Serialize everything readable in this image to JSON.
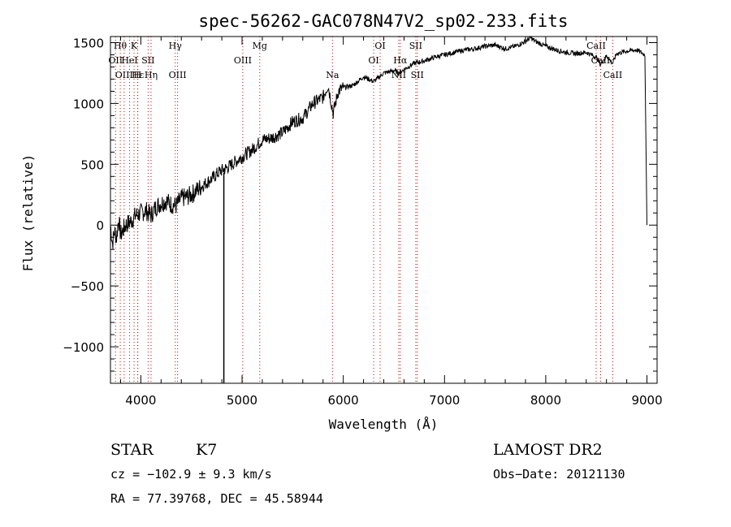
{
  "chart_data": {
    "type": "line",
    "title": "spec-56262-GAC078N47V2_sp02-233.fits",
    "xlabel": "Wavelength (Å)",
    "ylabel": "Flux (relative)",
    "xlim": [
      3700,
      9100
    ],
    "ylim": [
      -1300,
      1550
    ],
    "xticks": [
      4000,
      5000,
      6000,
      7000,
      8000,
      9000
    ],
    "yticks": [
      -1000,
      -500,
      0,
      500,
      1000,
      1500
    ],
    "tick_labels_x": [
      "4000",
      "5000",
      "6000",
      "7000",
      "8000",
      "9000"
    ],
    "tick_labels_y": [
      "−1000",
      "−500",
      "0",
      "500",
      "1000",
      "1500"
    ],
    "series": [
      {
        "x": [
          3700,
          3720,
          3740,
          3760,
          3780,
          3800,
          3850,
          3900,
          3950,
          4000,
          4050,
          4100,
          4150,
          4200,
          4250,
          4300,
          4350,
          4400,
          4450,
          4500,
          4600,
          4700,
          4750,
          4800,
          4850,
          4900,
          5000,
          5100,
          5200,
          5300,
          5400,
          5500,
          5600,
          5700,
          5800,
          5850,
          5900,
          5950,
          6000,
          6100,
          6200,
          6300,
          6400,
          6500,
          6550,
          6600,
          6700,
          6800,
          6900,
          7000,
          7100,
          7200,
          7300,
          7400,
          7500,
          7600,
          7700,
          7800,
          7850,
          7900,
          8000,
          8100,
          8200,
          8300,
          8400,
          8500,
          8540,
          8600,
          8660,
          8700,
          8800,
          8900,
          8980,
          9000
        ],
        "y": [
          0,
          -150,
          -50,
          -100,
          50,
          -80,
          0,
          30,
          80,
          100,
          120,
          80,
          150,
          180,
          200,
          170,
          160,
          220,
          230,
          250,
          320,
          380,
          420,
          450,
          470,
          500,
          560,
          620,
          700,
          720,
          760,
          850,
          880,
          1000,
          1050,
          1150,
          920,
          1100,
          1130,
          1150,
          1220,
          1180,
          1250,
          1270,
          1250,
          1280,
          1330,
          1350,
          1380,
          1400,
          1420,
          1440,
          1450,
          1470,
          1480,
          1450,
          1470,
          1510,
          1540,
          1510,
          1470,
          1440,
          1420,
          1410,
          1420,
          1380,
          1320,
          1390,
          1330,
          1410,
          1430,
          1440,
          1400,
          0
        ]
      }
    ],
    "spike": {
      "x": 4820,
      "y_top": 430,
      "y_bottom": -1300
    },
    "lines": [
      {
        "wl": 3750,
        "label": "OII",
        "row": 1
      },
      {
        "wl": 3797,
        "label": "Hθ",
        "row": 0
      },
      {
        "wl": 3835,
        "label": "OIII",
        "row": 2
      },
      {
        "wl": 3889,
        "label": "HeI",
        "row": 1
      },
      {
        "wl": 3933,
        "label": "K",
        "row": 0
      },
      {
        "wl": 3970,
        "label": "Hε",
        "row": 2
      },
      {
        "wl": 3968,
        "label": "H",
        "row": 2
      },
      {
        "wl": 4072,
        "label": "SII",
        "row": 1
      },
      {
        "wl": 4101,
        "label": "Hη",
        "row": 2
      },
      {
        "wl": 4340,
        "label": "Hγ",
        "row": 0
      },
      {
        "wl": 4363,
        "label": "OIII",
        "row": 2
      },
      {
        "wl": 5007,
        "label": "OIII",
        "row": 1
      },
      {
        "wl": 5175,
        "label": "Mg",
        "row": 0
      },
      {
        "wl": 5893,
        "label": "Na",
        "row": 2
      },
      {
        "wl": 6300,
        "label": "OI",
        "row": 1
      },
      {
        "wl": 6364,
        "label": "OI",
        "row": 0
      },
      {
        "wl": 6548,
        "label": "NII",
        "row": 2
      },
      {
        "wl": 6563,
        "label": "Hα",
        "row": 1
      },
      {
        "wl": 6716,
        "label": "SII",
        "row": 0
      },
      {
        "wl": 6731,
        "label": "SII",
        "row": 2
      },
      {
        "wl": 8498,
        "label": "CaII",
        "row": 0
      },
      {
        "wl": 8542,
        "label": "CaII",
        "row": 1
      },
      {
        "wl": 8662,
        "label": "CaII",
        "row": 2
      }
    ]
  },
  "info": {
    "class_label": "STAR",
    "subclass_label": "K7",
    "survey_label": "LAMOST DR2",
    "cz_line": "cz = −102.9 ± 9.3 km/s",
    "obs_date_line": "Obs−Date: 20121130",
    "radec_line": "RA =  77.39768, DEC =  45.58944"
  }
}
